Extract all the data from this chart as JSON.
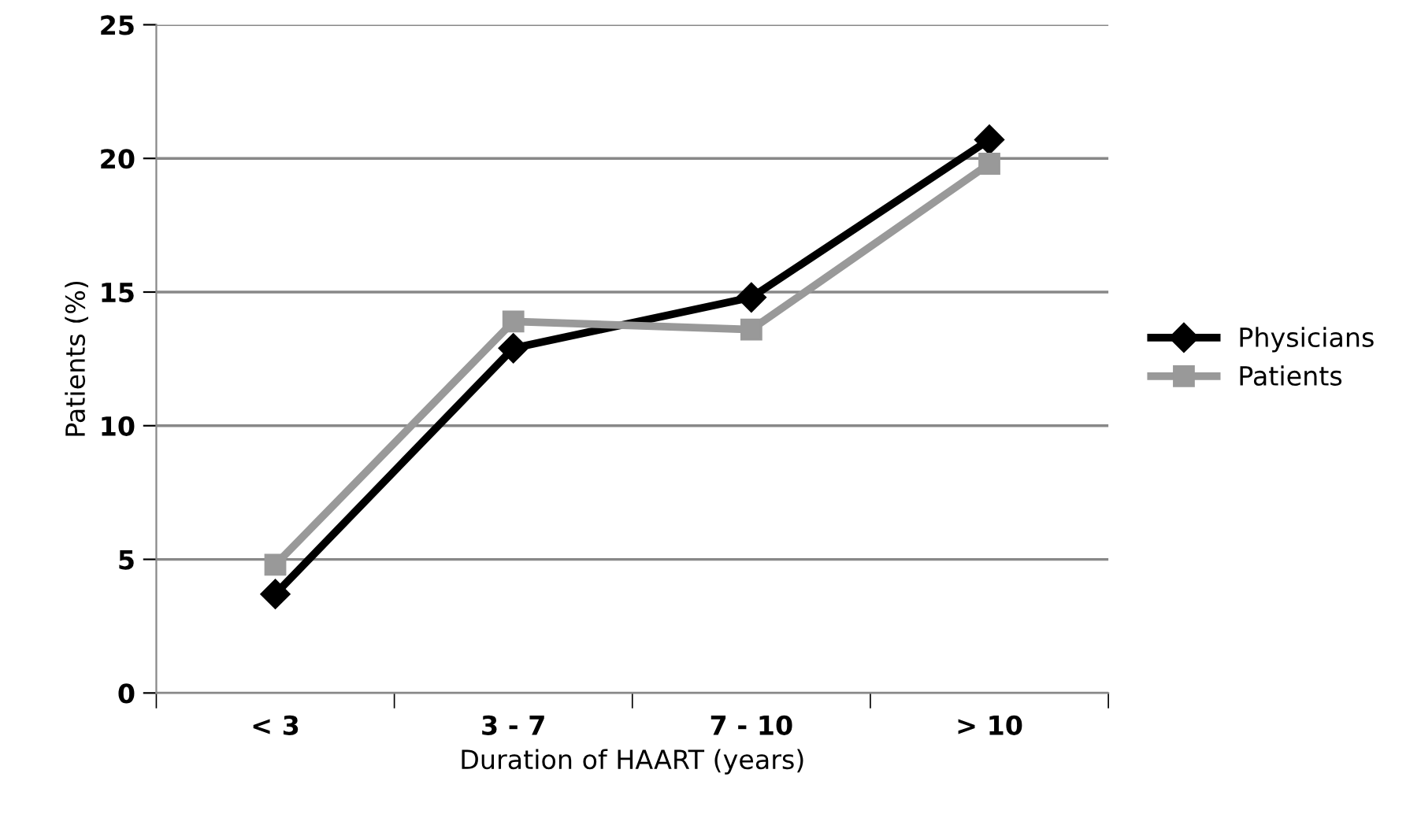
{
  "chart_data": {
    "type": "line",
    "xlabel": "Duration of HAART (years)",
    "ylabel": "Patients (%)",
    "categories": [
      "< 3",
      "3 - 7",
      "7 - 10",
      "> 10"
    ],
    "series": [
      {
        "name": "Physicians",
        "color": "#000000",
        "marker": "diamond",
        "values": [
          3.7,
          12.9,
          14.8,
          20.7
        ]
      },
      {
        "name": "Patients",
        "color": "#999999",
        "marker": "square",
        "values": [
          4.8,
          13.9,
          13.6,
          19.8
        ]
      }
    ],
    "ylim": [
      0,
      25
    ],
    "yticks": [
      0,
      5,
      10,
      15,
      20,
      25
    ],
    "grid": "y",
    "legend": "right",
    "line_style": "solid"
  }
}
